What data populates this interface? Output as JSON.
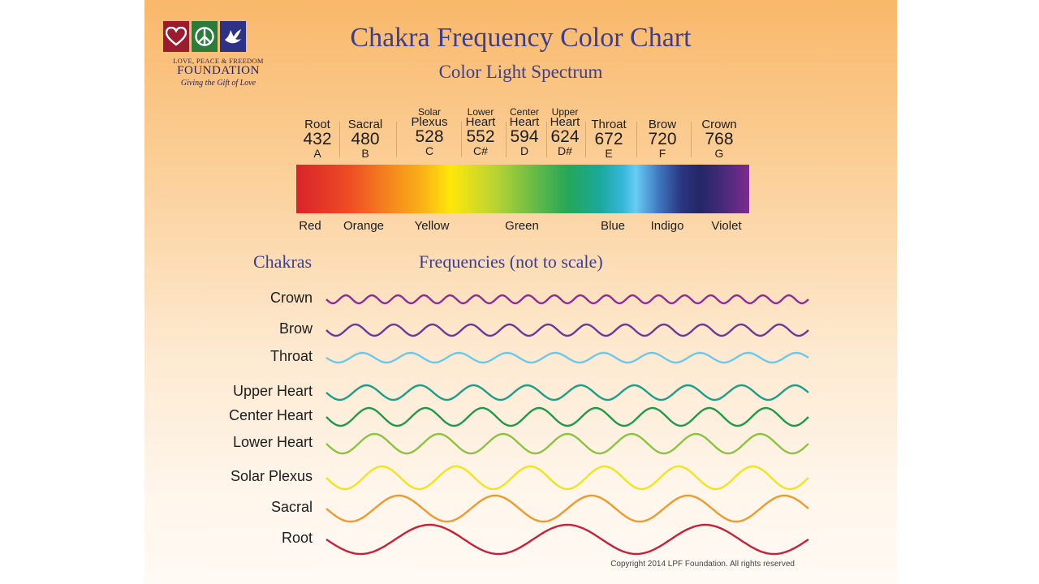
{
  "logo": {
    "line1": "LOVE, PEACE & FREEDOM",
    "line2": "FOUNDATION",
    "tagline": "Giving the Gift of Love",
    "icons": [
      "heart-icon",
      "peace-icon",
      "dove-icon"
    ],
    "colors": [
      "#9b1c2e",
      "#2b7b3a",
      "#2c3387"
    ]
  },
  "title": "Chakra Frequency Color Chart",
  "subtitle": "Color Light Spectrum",
  "chakra_frequencies": [
    {
      "name_top": "",
      "name": "Root",
      "freq": "432",
      "note": "A"
    },
    {
      "name_top": "",
      "name": "Sacral",
      "freq": "480",
      "note": "B"
    },
    {
      "name_top": "Solar",
      "name": "Plexus",
      "freq": "528",
      "note": "C"
    },
    {
      "name_top": "Lower",
      "name": "Heart",
      "freq": "552",
      "note": "C#"
    },
    {
      "name_top": "Center",
      "name": "Heart",
      "freq": "594",
      "note": "D"
    },
    {
      "name_top": "Upper",
      "name": "Heart",
      "freq": "624",
      "note": "D#"
    },
    {
      "name_top": "",
      "name": "Throat",
      "freq": "672",
      "note": "E"
    },
    {
      "name_top": "",
      "name": "Brow",
      "freq": "720",
      "note": "F"
    },
    {
      "name_top": "",
      "name": "Crown",
      "freq": "768",
      "note": "G"
    }
  ],
  "spectrum_labels": [
    "Red",
    "Orange",
    "Yellow",
    "Green",
    "Blue",
    "Indigo",
    "Violet"
  ],
  "section_chakras": "Chakras",
  "section_frequencies": "Frequencies (not to scale)",
  "wave_rows": [
    {
      "label": "Crown",
      "color": "#8b2f96"
    },
    {
      "label": "Brow",
      "color": "#6a3a9a"
    },
    {
      "label": "Throat",
      "color": "#6cc8ea"
    },
    {
      "label": "Upper Heart",
      "color": "#1a9f88"
    },
    {
      "label": "Center Heart",
      "color": "#1f9a4a"
    },
    {
      "label": "Lower Heart",
      "color": "#8cc33f"
    },
    {
      "label": "Solar Plexus",
      "color": "#f2e41c"
    },
    {
      "label": "Sacral",
      "color": "#ef9a2a"
    },
    {
      "label": "Root",
      "color": "#c8203a"
    }
  ],
  "copyright": "Copyright 2014 LPF Foundation. All rights reserved"
}
